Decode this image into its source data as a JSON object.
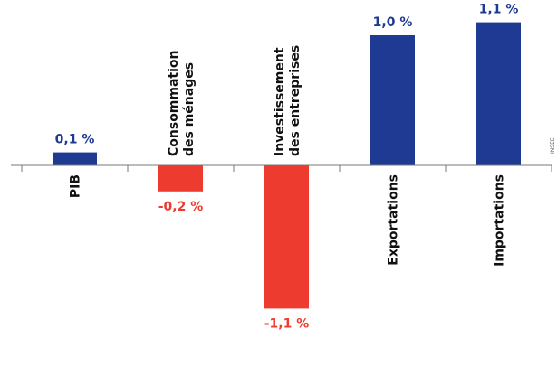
{
  "chart_data": {
    "type": "bar",
    "categories": [
      [
        "PIB"
      ],
      [
        "Consommation",
        "des ménages"
      ],
      [
        "Investissement",
        "des entreprises"
      ],
      [
        "Exportations"
      ],
      [
        "Importations"
      ]
    ],
    "values": [
      0.1,
      -0.2,
      -1.1,
      1.0,
      1.1
    ],
    "value_labels": [
      "0,1 %",
      "-0,2 %",
      "-1,1 %",
      "1,0 %",
      "1,1 %"
    ],
    "colors": {
      "positive": "#1f3a93",
      "negative": "#ee3b2f"
    },
    "ylim": [
      -1.2,
      1.2
    ],
    "source_fragment": "INSEE"
  }
}
